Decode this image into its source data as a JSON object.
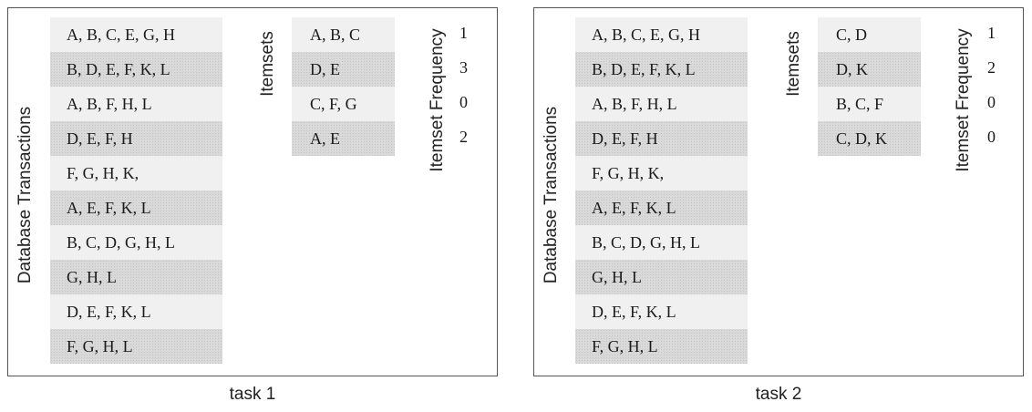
{
  "tasks": [
    {
      "caption": "task 1",
      "transactions_label": "Database Transactions",
      "itemsets_label": "Itemsets",
      "frequency_label": "Itemset Frequency",
      "transactions": [
        "A, B, C, E, G, H",
        "B, D, E, F, K, L",
        "A, B, F, H, L",
        "D, E, F, H",
        "F, G, H, K,",
        "A, E, F, K, L",
        "B, C, D, G, H, L",
        "G, H, L",
        "D, E, F, K, L",
        "F, G, H, L"
      ],
      "itemsets": [
        "A, B, C",
        "D, E",
        "C, F, G",
        "A, E"
      ],
      "frequencies": [
        "1",
        "3",
        "0",
        "2"
      ]
    },
    {
      "caption": "task 2",
      "transactions_label": "Database Transactions",
      "itemsets_label": "Itemsets",
      "frequency_label": "Itemset Frequency",
      "transactions": [
        "A, B, C, E, G, H",
        "B, D, E, F, K, L",
        "A, B, F, H, L",
        "D, E, F, H",
        "F, G, H, K,",
        "A, E, F, K, L",
        "B, C, D, G, H, L",
        "G, H, L",
        "D, E, F, K, L",
        "F, G, H, L"
      ],
      "itemsets": [
        "C, D",
        "D, K",
        "B, C, F",
        "C, D, K"
      ],
      "frequencies": [
        "1",
        "2",
        "0",
        "0"
      ]
    }
  ]
}
